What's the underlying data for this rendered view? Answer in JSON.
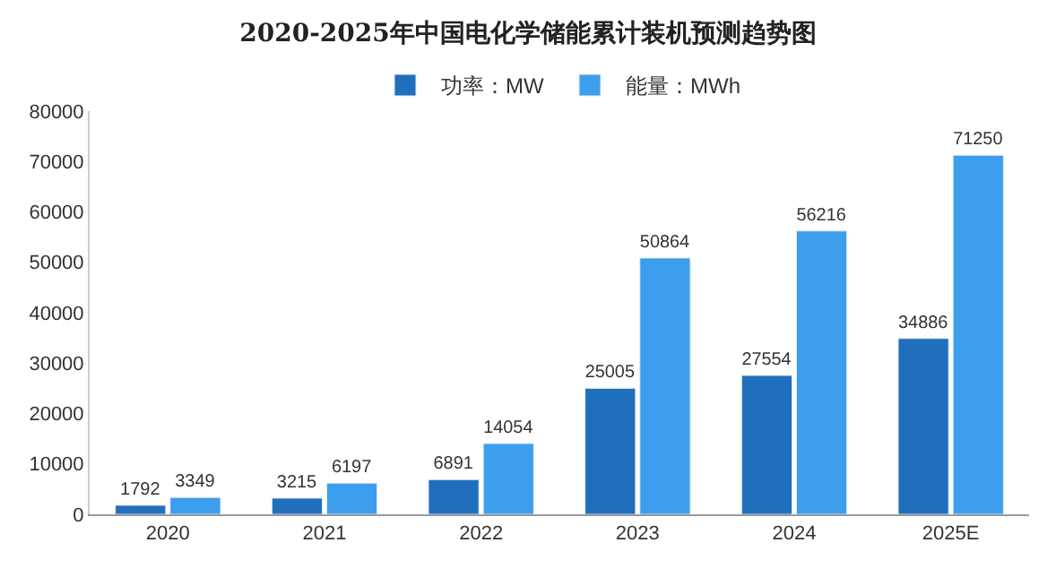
{
  "chart_data": {
    "type": "bar",
    "title": "2020-2025年中国电化学储能累计装机预测趋势图",
    "categories": [
      "2020",
      "2021",
      "2022",
      "2023",
      "2024",
      "2025E"
    ],
    "series": [
      {
        "name": "功率：MW",
        "color": "#1f6fbd",
        "values": [
          1792,
          3215,
          6891,
          25005,
          27554,
          34886
        ]
      },
      {
        "name": "能量：MWh",
        "color": "#3d9eee",
        "values": [
          3349,
          6197,
          14054,
          50864,
          56216,
          71250
        ]
      }
    ],
    "ylim": [
      0,
      80000
    ],
    "yticks": [
      0,
      10000,
      20000,
      30000,
      40000,
      50000,
      60000,
      70000,
      80000
    ],
    "legend": "top",
    "data_labels": true
  }
}
